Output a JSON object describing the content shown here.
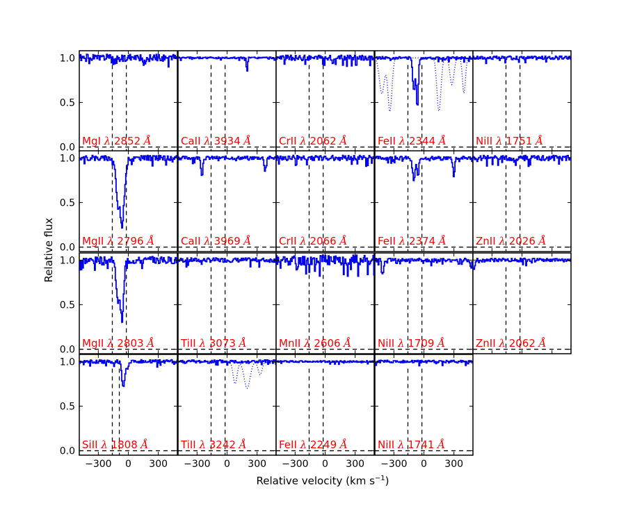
{
  "chart_data": {
    "type": "line",
    "grid": false,
    "xlabel": "Relative velocity (km s",
    "xlabel_sup": "−1",
    "xlabel_close": ")",
    "ylabel": "Relative flux",
    "xlim": [
      -490,
      490
    ],
    "ylim": [
      -0.05,
      1.08
    ],
    "x_ticks": [
      -300,
      0,
      300
    ],
    "x_tick_labels": [
      "−300",
      "0",
      "300"
    ],
    "y_ticks": [
      0.0,
      0.5,
      1.0
    ],
    "y_tick_labels": [
      "0.0",
      "0.5",
      "1.0"
    ],
    "label_prefix_lambda": "λ",
    "label_angstrom": "Å",
    "panels": [
      {
        "label": "MgI",
        "wavelength": "2852",
        "markers": [
          -160,
          -20
        ],
        "features": [
          {
            "v": -130,
            "depth": 0.05
          },
          {
            "v": 150,
            "depth": 0.06
          }
        ],
        "noise": 0.04,
        "seed": 1
      },
      {
        "label": "MgII",
        "wavelength": "2796",
        "markers": [
          -160,
          -20
        ],
        "features": [
          {
            "v": -100,
            "depth": 0.55,
            "w": 20
          },
          {
            "v": -60,
            "depth": 0.65,
            "w": 15
          },
          {
            "v": -30,
            "depth": 0.2,
            "w": 15
          }
        ],
        "noise": 0.03,
        "seed": 2
      },
      {
        "label": "MgII",
        "wavelength": "2803",
        "markers": [
          -160,
          -20
        ],
        "features": [
          {
            "v": -100,
            "depth": 0.45,
            "w": 20
          },
          {
            "v": -60,
            "depth": 0.6,
            "w": 15
          }
        ],
        "noise": 0.04,
        "seed": 3
      },
      {
        "label": "SiII",
        "wavelength": "1808",
        "markers": [
          -160,
          -90
        ],
        "features": [
          {
            "v": -50,
            "depth": 0.3,
            "w": 14
          },
          {
            "v": -10,
            "depth": 0.08,
            "w": 10
          }
        ],
        "noise": 0.02,
        "seed": 4
      },
      {
        "label": "CaII",
        "wavelength": "3934",
        "markers": [
          -160,
          -20
        ],
        "features": [
          {
            "v": 200,
            "depth": 0.15,
            "w": 6
          }
        ],
        "noise": 0.01,
        "seed": 5
      },
      {
        "label": "CaII",
        "wavelength": "3969",
        "markers": [
          -160,
          -20
        ],
        "features": [
          {
            "v": -250,
            "depth": 0.2,
            "w": 8
          },
          {
            "v": 380,
            "depth": 0.15,
            "w": 8
          }
        ],
        "noise": 0.02,
        "seed": 6
      },
      {
        "label": "TiII",
        "wavelength": "3073",
        "markers": [
          -160,
          -20
        ],
        "features": [],
        "noise": 0.025,
        "seed": 7
      },
      {
        "label": "TiII",
        "wavelength": "3242",
        "markers": [
          -160,
          -20
        ],
        "features": [],
        "noise": 0.02,
        "seed": 8,
        "dotted": [
          {
            "v": 80,
            "depth": 0.25,
            "w": 20
          },
          {
            "v": 200,
            "depth": 0.3,
            "w": 30
          },
          {
            "v": 330,
            "depth": 0.15,
            "w": 20
          }
        ]
      },
      {
        "label": "CrII",
        "wavelength": "2062",
        "markers": [
          -160,
          -20
        ],
        "features": [],
        "noise": 0.03,
        "seed": 9
      },
      {
        "label": "CrII",
        "wavelength": "2066",
        "markers": [
          -160,
          -20
        ],
        "features": [],
        "noise": 0.03,
        "seed": 10
      },
      {
        "label": "MnII",
        "wavelength": "2606",
        "markers": [
          -160,
          -20
        ],
        "features": [
          {
            "v": -280,
            "depth": 0.1,
            "w": 10
          }
        ],
        "noise": 0.06,
        "seed": 11
      },
      {
        "label": "FeII",
        "wavelength": "2249",
        "markers": [
          -160,
          -20
        ],
        "features": [],
        "noise": 0.01,
        "seed": 12
      },
      {
        "label": "FeII",
        "wavelength": "2344",
        "markers": [
          -160,
          -20
        ],
        "features": [
          {
            "v": -100,
            "depth": 0.35,
            "w": 12
          },
          {
            "v": -65,
            "depth": 0.55,
            "w": 10
          }
        ],
        "noise": 0.015,
        "seed": 13,
        "dotted": [
          {
            "v": -420,
            "depth": 0.4,
            "w": 25
          },
          {
            "v": -340,
            "depth": 0.6,
            "w": 20
          },
          {
            "v": 150,
            "depth": 0.6,
            "w": 20
          },
          {
            "v": 280,
            "depth": 0.3,
            "w": 20
          },
          {
            "v": 400,
            "depth": 0.4,
            "w": 15
          }
        ]
      },
      {
        "label": "FeII",
        "wavelength": "2374",
        "markers": [
          -160,
          -20
        ],
        "features": [
          {
            "v": -100,
            "depth": 0.25,
            "w": 12
          },
          {
            "v": -60,
            "depth": 0.2,
            "w": 10
          },
          {
            "v": 300,
            "depth": 0.2,
            "w": 8
          }
        ],
        "noise": 0.02,
        "seed": 14
      },
      {
        "label": "NiII",
        "wavelength": "1709",
        "markers": [
          -160,
          -20
        ],
        "features": [
          {
            "v": -410,
            "depth": 0.15,
            "w": 10
          },
          {
            "v": 470,
            "depth": 0.1,
            "w": 8
          }
        ],
        "noise": 0.02,
        "seed": 15
      },
      {
        "label": "NiII",
        "wavelength": "1741",
        "markers": [
          -160,
          -20
        ],
        "features": [],
        "noise": 0.015,
        "seed": 16
      },
      {
        "label": "NiII",
        "wavelength": "1751",
        "markers": [
          -160,
          -20
        ],
        "features": [],
        "noise": 0.02,
        "seed": 17
      },
      {
        "label": "ZnII",
        "wavelength": "2026",
        "markers": [
          -160,
          -20
        ],
        "features": [],
        "noise": 0.03,
        "seed": 18
      },
      {
        "label": "ZnII",
        "wavelength": "2062",
        "markers": [
          -160,
          -20
        ],
        "features": [
          {
            "v": -480,
            "depth": 0.12,
            "w": 8
          }
        ],
        "noise": 0.02,
        "seed": 19
      }
    ]
  }
}
